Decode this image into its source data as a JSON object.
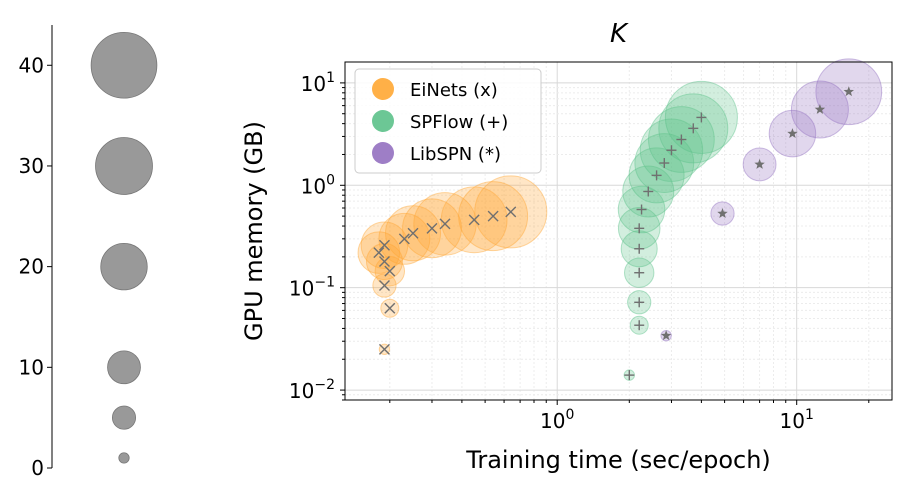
{
  "chart_data": [
    {
      "type": "bubble-size-legend",
      "values": [
        40,
        30,
        20,
        10,
        5,
        1
      ],
      "ticks": [
        "0",
        "10",
        "20",
        "30",
        "40"
      ],
      "tick_values": [
        0,
        10,
        20,
        30,
        40
      ],
      "ylim": [
        0,
        44
      ],
      "bubble_color": "#999999"
    },
    {
      "type": "scatter",
      "title": "K",
      "xlabel": "Training time (sec/epoch)",
      "ylabel": "GPU memory (GB)",
      "xscale": "log",
      "yscale": "log",
      "xlim": [
        0.13,
        25
      ],
      "ylim": [
        0.008,
        16
      ],
      "grid": true,
      "legend_position": "top-left",
      "x_ticks": [
        {
          "value": 1,
          "base": "10",
          "exp": "0"
        },
        {
          "value": 10,
          "base": "10",
          "exp": "1"
        }
      ],
      "y_ticks": [
        {
          "value": 0.01,
          "base": "10",
          "exp": "−2"
        },
        {
          "value": 0.1,
          "base": "10",
          "exp": "−1"
        },
        {
          "value": 1,
          "base": "10",
          "exp": "0"
        },
        {
          "value": 10,
          "base": "10",
          "exp": "1"
        }
      ],
      "series": [
        {
          "name": "EiNets (x)",
          "color": "#ffa733",
          "marker": "x",
          "points": [
            {
              "x": 0.19,
              "y": 0.025,
              "size": 1
            },
            {
              "x": 0.2,
              "y": 0.063,
              "size": 3
            },
            {
              "x": 0.19,
              "y": 0.105,
              "size": 5
            },
            {
              "x": 0.2,
              "y": 0.145,
              "size": 8
            },
            {
              "x": 0.19,
              "y": 0.18,
              "size": 12
            },
            {
              "x": 0.18,
              "y": 0.22,
              "size": 16
            },
            {
              "x": 0.19,
              "y": 0.26,
              "size": 20
            },
            {
              "x": 0.23,
              "y": 0.3,
              "size": 24
            },
            {
              "x": 0.25,
              "y": 0.34,
              "size": 28
            },
            {
              "x": 0.3,
              "y": 0.38,
              "size": 32
            },
            {
              "x": 0.34,
              "y": 0.42,
              "size": 36
            },
            {
              "x": 0.45,
              "y": 0.46,
              "size": 40
            },
            {
              "x": 0.54,
              "y": 0.5,
              "size": 44
            },
            {
              "x": 0.64,
              "y": 0.55,
              "size": 48
            }
          ]
        },
        {
          "name": "SPFlow (+)",
          "color": "#5cc18a",
          "marker": "+",
          "points": [
            {
              "x": 2.0,
              "y": 0.014,
              "size": 1
            },
            {
              "x": 2.2,
              "y": 0.043,
              "size": 3
            },
            {
              "x": 2.2,
              "y": 0.072,
              "size": 5
            },
            {
              "x": 2.2,
              "y": 0.14,
              "size": 8
            },
            {
              "x": 2.2,
              "y": 0.24,
              "size": 12
            },
            {
              "x": 2.2,
              "y": 0.38,
              "size": 16
            },
            {
              "x": 2.25,
              "y": 0.58,
              "size": 20
            },
            {
              "x": 2.4,
              "y": 0.87,
              "size": 24
            },
            {
              "x": 2.6,
              "y": 1.25,
              "size": 28
            },
            {
              "x": 2.8,
              "y": 1.65,
              "size": 32
            },
            {
              "x": 3.0,
              "y": 2.2,
              "size": 36
            },
            {
              "x": 3.3,
              "y": 2.8,
              "size": 40
            },
            {
              "x": 3.7,
              "y": 3.6,
              "size": 44
            },
            {
              "x": 4.0,
              "y": 4.6,
              "size": 48
            }
          ]
        },
        {
          "name": "LibSPN (*)",
          "color": "#9370c0",
          "marker": "*",
          "points": [
            {
              "x": 2.85,
              "y": 0.034,
              "size": 1
            },
            {
              "x": 4.9,
              "y": 0.53,
              "size": 5
            },
            {
              "x": 7.0,
              "y": 1.6,
              "size": 10
            },
            {
              "x": 9.6,
              "y": 3.2,
              "size": 20
            },
            {
              "x": 12.5,
              "y": 5.5,
              "size": 30
            },
            {
              "x": 16.5,
              "y": 8.2,
              "size": 40
            }
          ]
        }
      ]
    }
  ]
}
